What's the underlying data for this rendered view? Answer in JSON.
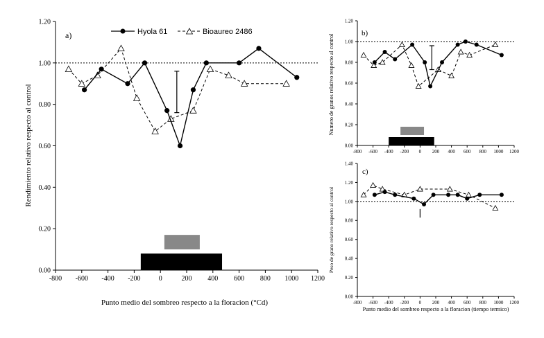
{
  "chart_data": [
    {
      "id": "a",
      "type": "line",
      "panel_label": "a)",
      "xlabel": "Punto medio del sombreo respecto a la floracion (°Cd)",
      "ylabel": "Rendimiento relativo respecto al control",
      "xlim": [
        -800,
        1200
      ],
      "ylim": [
        0,
        1.2
      ],
      "xticks": [
        -800,
        -600,
        -400,
        -200,
        0,
        200,
        400,
        600,
        800,
        1000,
        1200
      ],
      "xtick_labels": [
        "-800",
        "-600",
        "-400",
        "-200",
        "0",
        "200",
        "400",
        "600",
        "800",
        "1000",
        "1200"
      ],
      "yticks": [
        0,
        0.2,
        0.4,
        0.6,
        0.8,
        1.0,
        1.2
      ],
      "ytick_labels": [
        "0.00",
        "0.20",
        "0.40",
        "0.60",
        "0.80",
        "1.00",
        "1.20"
      ],
      "reference_line": 1.0,
      "legend": {
        "position": "top",
        "entries": [
          "Hyola 61",
          "Bioaureo 2486"
        ]
      },
      "series": [
        {
          "name": "Hyola 61",
          "marker": "filled-circle",
          "style": "solid",
          "x": [
            -580,
            -450,
            -250,
            -120,
            50,
            150,
            250,
            350,
            600,
            750,
            1040
          ],
          "y": [
            0.87,
            0.97,
            0.9,
            1.0,
            0.77,
            0.6,
            0.87,
            1.0,
            1.0,
            1.07,
            0.93
          ]
        },
        {
          "name": "Bioaureo 2486",
          "marker": "open-triangle",
          "style": "dashed",
          "x": [
            -700,
            -600,
            -480,
            -300,
            -180,
            -40,
            80,
            250,
            380,
            520,
            640,
            960
          ],
          "y": [
            0.97,
            0.9,
            0.94,
            1.07,
            0.83,
            0.67,
            0.73,
            0.77,
            0.97,
            0.94,
            0.9,
            0.9
          ]
        }
      ],
      "error_bar": {
        "x": 125,
        "low": 0.76,
        "high": 0.96
      },
      "shade_bars": [
        {
          "color": "#888888",
          "x_start": 30,
          "x_end": 300,
          "y_low": 0.1,
          "y_high": 0.17
        },
        {
          "color": "#000000",
          "x_start": -150,
          "x_end": 470,
          "y_low": 0.0,
          "y_high": 0.08
        }
      ]
    },
    {
      "id": "b",
      "type": "line",
      "panel_label": "b)",
      "xlabel": "",
      "ylabel": "Numero de granos relativo respecto al control",
      "xlim": [
        -800,
        1200
      ],
      "ylim": [
        0,
        1.2
      ],
      "xticks": [
        -800,
        -600,
        -400,
        -200,
        0,
        200,
        400,
        600,
        800,
        1000,
        1200
      ],
      "xtick_labels": [
        "-800",
        "-600",
        "-400",
        "-200",
        "0",
        "200",
        "400",
        "600",
        "800",
        "1000",
        "1200"
      ],
      "yticks": [
        0,
        0.2,
        0.4,
        0.6,
        0.8,
        1.0,
        1.2
      ],
      "ytick_labels": [
        "0.00",
        "0.20",
        "0.40",
        "0.60",
        "0.80",
        "1.00",
        "1.20"
      ],
      "reference_line": 1.0,
      "series": [
        {
          "name": "Hyola 61",
          "marker": "filled-circle",
          "style": "solid",
          "x": [
            -580,
            -450,
            -320,
            -100,
            60,
            130,
            280,
            480,
            580,
            720,
            1040
          ],
          "y": [
            0.8,
            0.9,
            0.83,
            0.97,
            0.8,
            0.57,
            0.8,
            0.97,
            1.0,
            0.97,
            0.87
          ]
        },
        {
          "name": "Bioaureo 2486",
          "marker": "open-triangle",
          "style": "dashed",
          "x": [
            -720,
            -590,
            -480,
            -230,
            -110,
            -20,
            230,
            400,
            520,
            630,
            960
          ],
          "y": [
            0.87,
            0.77,
            0.8,
            0.97,
            0.77,
            0.57,
            0.73,
            0.67,
            0.9,
            0.87,
            0.97
          ]
        }
      ],
      "error_bar": {
        "x": 150,
        "low": 0.73,
        "high": 0.96
      },
      "shade_bars": [
        {
          "color": "#888888",
          "x_start": -250,
          "x_end": 50,
          "y_low": 0.1,
          "y_high": 0.18
        },
        {
          "color": "#000000",
          "x_start": -400,
          "x_end": 180,
          "y_low": 0.0,
          "y_high": 0.08
        }
      ]
    },
    {
      "id": "c",
      "type": "line",
      "panel_label": "c)",
      "xlabel": "Punto medio del sombreo respecto a la floracion (tiempo termico)",
      "ylabel": "Peso de grano relativo respecto al control",
      "xlim": [
        -800,
        1200
      ],
      "ylim": [
        0,
        1.4
      ],
      "xticks": [
        -800,
        -600,
        -400,
        -200,
        0,
        200,
        400,
        600,
        800,
        1000,
        1200
      ],
      "xtick_labels": [
        "-800",
        "-600",
        "-400",
        "-200",
        "0",
        "200",
        "400",
        "600",
        "800",
        "1000",
        "1200"
      ],
      "yticks": [
        0,
        0.2,
        0.4,
        0.6,
        0.8,
        1.0,
        1.2,
        1.4
      ],
      "ytick_labels": [
        "0.00",
        "0.20",
        "0.40",
        "0.60",
        "0.80",
        "1.00",
        "1.20",
        "1.40"
      ],
      "reference_line": 1.0,
      "series": [
        {
          "name": "Hyola 61",
          "marker": "filled-circle",
          "style": "solid",
          "x": [
            -580,
            -450,
            -320,
            -80,
            50,
            170,
            360,
            480,
            600,
            760,
            1040
          ],
          "y": [
            1.07,
            1.1,
            1.07,
            1.03,
            0.97,
            1.07,
            1.07,
            1.07,
            1.03,
            1.07,
            1.07
          ]
        },
        {
          "name": "Bioaureo 2486",
          "marker": "open-triangle",
          "style": "dashed",
          "x": [
            -720,
            -600,
            -480,
            -200,
            0,
            380,
            620,
            960
          ],
          "y": [
            1.07,
            1.17,
            1.13,
            1.07,
            1.13,
            1.13,
            1.07,
            0.93
          ]
        }
      ],
      "error_bar": {
        "x": 0,
        "low": 0.83,
        "high": 0.92
      },
      "shade_bars": []
    }
  ]
}
